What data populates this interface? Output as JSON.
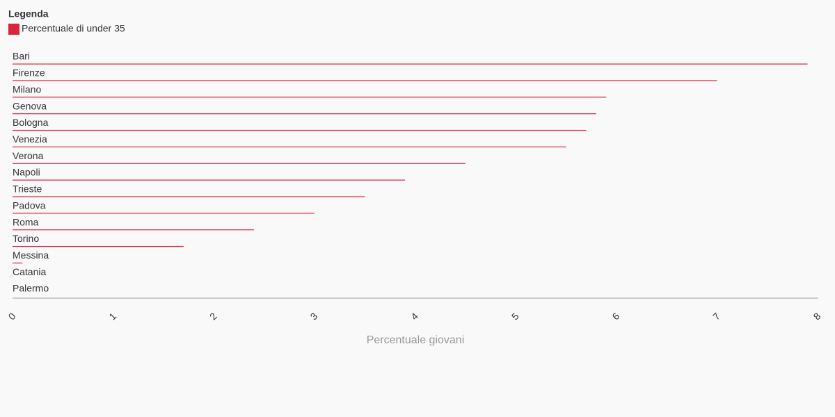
{
  "chart_data": {
    "type": "hbar",
    "legend_title": "Legenda",
    "xlabel": "Percentuale giovani",
    "categories": [
      "Bari",
      "Firenze",
      "Milano",
      "Genova",
      "Bologna",
      "Venezia",
      "Verona",
      "Napoli",
      "Trieste",
      "Padova",
      "Roma",
      "Torino",
      "Messina",
      "Catania",
      "Palermo"
    ],
    "series": [
      {
        "name": "Percentuale di under 35",
        "color": "#d7263d",
        "values": [
          7.9,
          7.0,
          5.9,
          5.8,
          5.7,
          5.5,
          4.5,
          3.9,
          3.5,
          3.0,
          2.4,
          1.7,
          0.1,
          0,
          0
        ]
      }
    ],
    "xlim": [
      0,
      8
    ],
    "xticks": [
      0,
      1,
      2,
      3,
      4,
      5,
      6,
      7,
      8
    ],
    "grid": false
  }
}
